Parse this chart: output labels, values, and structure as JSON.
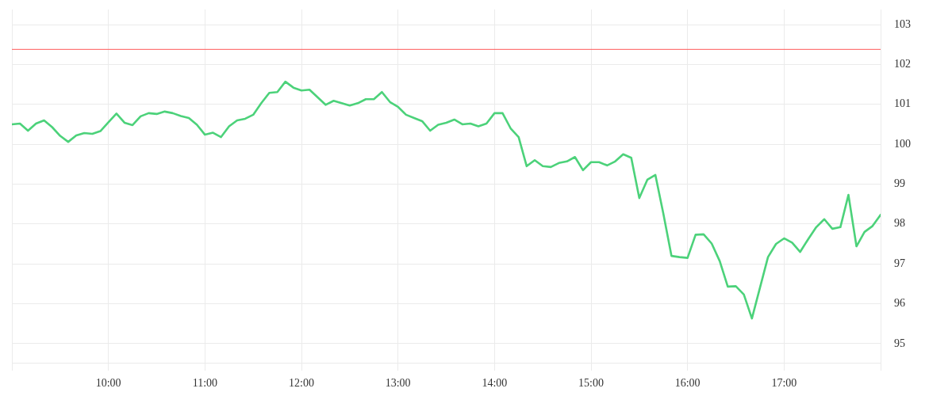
{
  "chart_data": {
    "type": "line",
    "color": "#4cd27a",
    "marker": "none",
    "grid": true,
    "x": [
      9,
      9.0833,
      9.1667,
      9.25,
      9.3333,
      9.4167,
      9.5,
      9.5833,
      9.6667,
      9.75,
      9.8333,
      9.9167,
      10,
      10.0833,
      10.1667,
      10.25,
      10.3333,
      10.4167,
      10.5,
      10.5833,
      10.6667,
      10.75,
      10.8333,
      10.9167,
      11,
      11.0833,
      11.1667,
      11.25,
      11.3333,
      11.4167,
      11.5,
      11.5833,
      11.6667,
      11.75,
      11.8333,
      11.9167,
      12,
      12.0833,
      12.1667,
      12.25,
      12.3333,
      12.4167,
      12.5,
      12.5833,
      12.6667,
      12.75,
      12.8333,
      12.9167,
      13,
      13.0833,
      13.1667,
      13.25,
      13.3333,
      13.4167,
      13.5,
      13.5833,
      13.6667,
      13.75,
      13.8333,
      13.9167,
      14,
      14.0833,
      14.1667,
      14.25,
      14.3333,
      14.4167,
      14.5,
      14.5833,
      14.6667,
      14.75,
      14.8333,
      14.9167,
      15,
      15.0833,
      15.1667,
      15.25,
      15.3333,
      15.4167,
      15.5,
      15.5833,
      15.6667,
      15.75,
      15.8333,
      15.9167,
      16,
      16.0833,
      16.1667,
      16.25,
      16.3333,
      16.4167,
      16.5,
      16.5833,
      16.6667,
      16.75,
      16.8333,
      16.9167,
      17,
      17.0833,
      17.1667,
      17.25,
      17.3333,
      17.4167,
      17.5,
      17.5833,
      17.6667,
      17.75,
      17.8333,
      17.9167,
      18
    ],
    "values": [
      100.5,
      100.52,
      100.34,
      100.52,
      100.6,
      100.43,
      100.21,
      100.06,
      100.22,
      100.28,
      100.26,
      100.33,
      100.55,
      100.77,
      100.54,
      100.48,
      100.7,
      100.78,
      100.76,
      100.82,
      100.78,
      100.71,
      100.66,
      100.49,
      100.24,
      100.29,
      100.18,
      100.45,
      100.6,
      100.64,
      100.74,
      101.03,
      101.29,
      101.31,
      101.57,
      101.42,
      101.35,
      101.37,
      101.18,
      100.99,
      101.09,
      101.03,
      100.97,
      101.03,
      101.13,
      101.13,
      101.31,
      101.06,
      100.94,
      100.74,
      100.66,
      100.58,
      100.34,
      100.49,
      100.54,
      100.62,
      100.5,
      100.52,
      100.45,
      100.52,
      100.78,
      100.78,
      100.4,
      100.18,
      99.45,
      99.6,
      99.45,
      99.43,
      99.53,
      99.57,
      99.68,
      99.35,
      99.55,
      99.55,
      99.47,
      99.57,
      99.75,
      99.66,
      98.65,
      99.11,
      99.23,
      98.25,
      97.2,
      97.17,
      97.15,
      97.73,
      97.74,
      97.51,
      97.07,
      96.43,
      96.44,
      96.23,
      95.63,
      96.4,
      97.17,
      97.5,
      97.64,
      97.53,
      97.3,
      97.62,
      97.92,
      98.12,
      97.88,
      97.92,
      98.73,
      97.44,
      97.8,
      97.95,
      98.23
    ],
    "xlim": [
      9,
      18
    ],
    "xticks": [
      {
        "value": 9,
        "label": null
      },
      {
        "value": 10,
        "label": "10:00"
      },
      {
        "value": 11,
        "label": "11:00"
      },
      {
        "value": 12,
        "label": "12:00"
      },
      {
        "value": 13,
        "label": "13:00"
      },
      {
        "value": 14,
        "label": "14:00"
      },
      {
        "value": 15,
        "label": "15:00"
      },
      {
        "value": 16,
        "label": "16:00"
      },
      {
        "value": 17,
        "label": "17:00"
      },
      {
        "value": 18,
        "label": null
      }
    ],
    "ylim": [
      94.52,
      103.38
    ],
    "yticks": [
      95,
      96,
      97,
      98,
      99,
      100,
      101,
      102,
      103
    ],
    "ref_lines": [
      {
        "axis": "y",
        "value": 102.38,
        "color": "#ff5a5a"
      }
    ]
  }
}
